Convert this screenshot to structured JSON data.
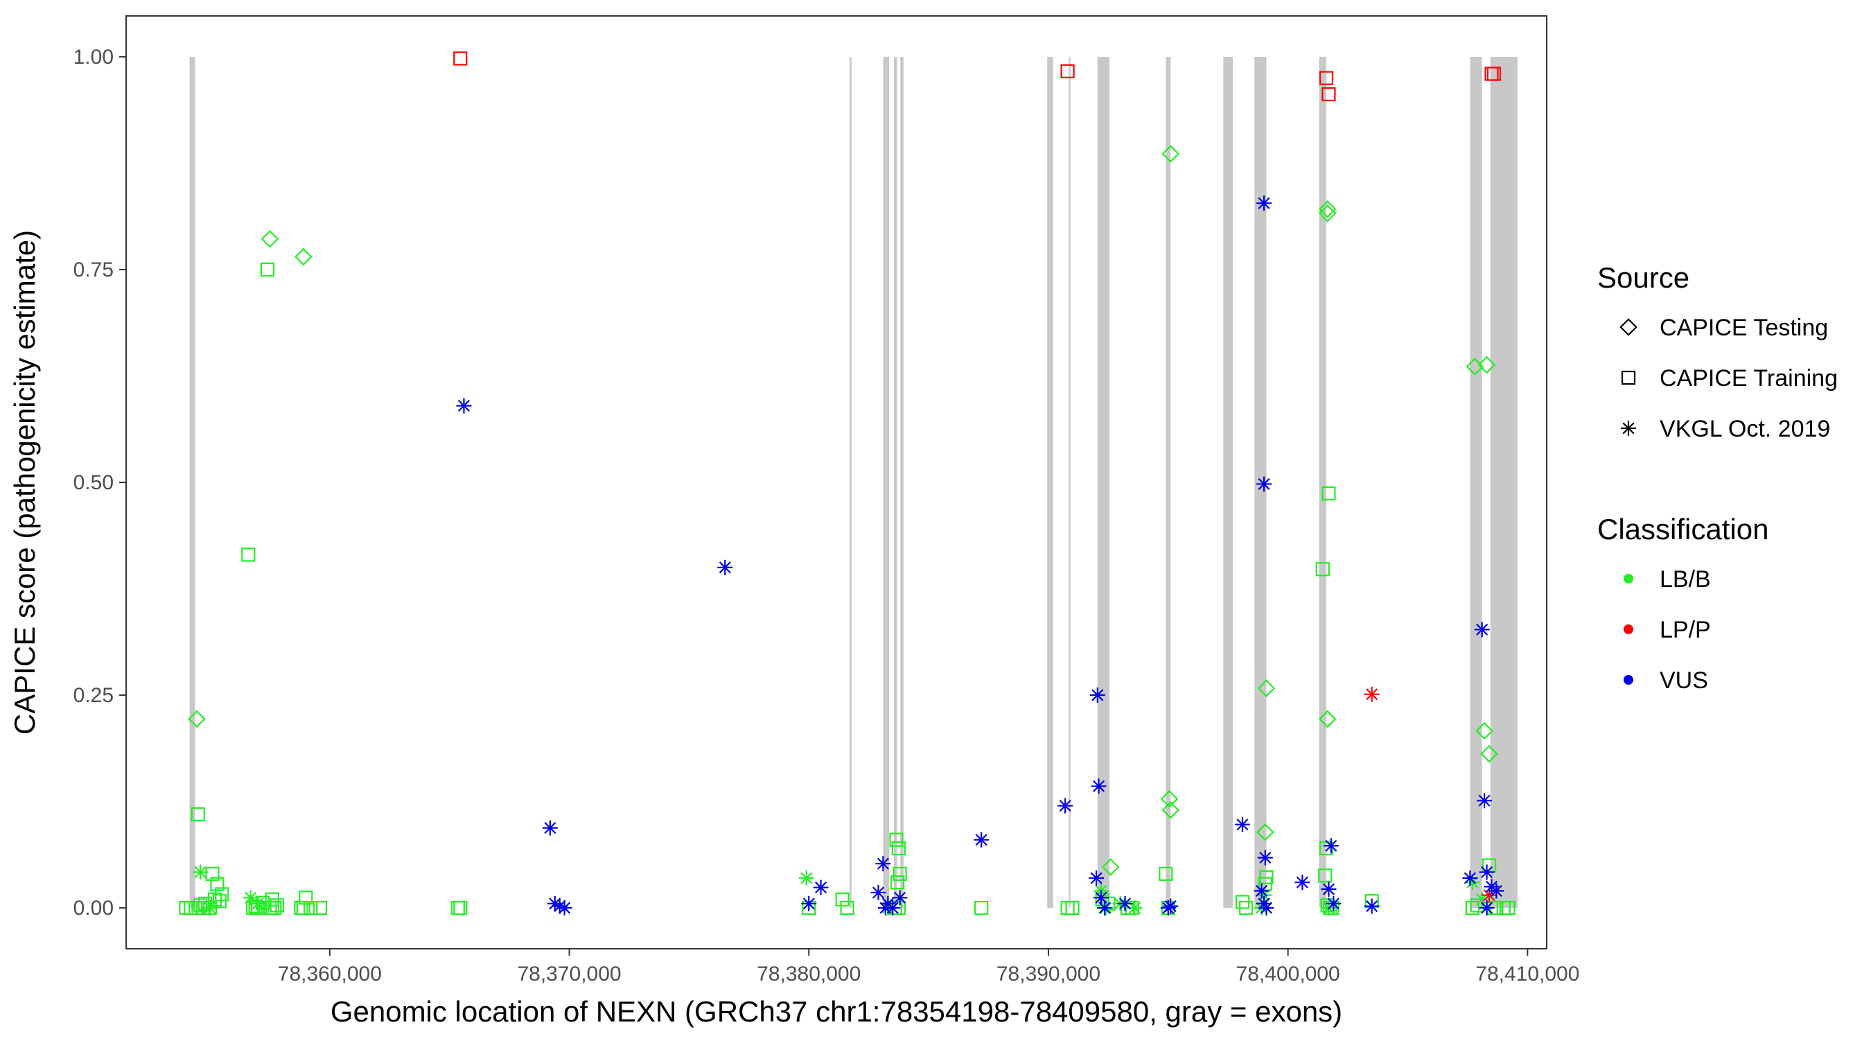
{
  "chart_data": {
    "type": "scatter",
    "xlabel": "Genomic location of NEXN (GRCh37 chr1:78354198-78409580, gray = exons)",
    "ylabel": "CAPICE score (pathogenicity estimate)",
    "xlim": [
      78351500,
      78410800
    ],
    "ylim": [
      -0.048,
      1.048
    ],
    "x_ticks": [
      78360000,
      78370000,
      78380000,
      78390000,
      78400000,
      78410000
    ],
    "x_tick_labels": [
      "78,360,000",
      "78,370,000",
      "78,380,000",
      "78,390,000",
      "78,400,000",
      "78,410,000"
    ],
    "y_ticks": [
      0,
      0.25,
      0.5,
      0.75,
      1.0
    ],
    "y_tick_labels": [
      "0.00",
      "0.25",
      "0.50",
      "0.75",
      "1.00"
    ],
    "grid": false,
    "exon_color": "#c8c8c8",
    "exons": [
      [
        78354150,
        78354380
      ],
      [
        78381700,
        78381780
      ],
      [
        78383100,
        78383350
      ],
      [
        78383550,
        78383680
      ],
      [
        78383820,
        78383950
      ],
      [
        78389950,
        78390200
      ],
      [
        78390850,
        78390920
      ],
      [
        78392050,
        78392550
      ],
      [
        78394900,
        78395100
      ],
      [
        78397300,
        78397700
      ],
      [
        78398600,
        78399100
      ],
      [
        78401300,
        78401600
      ],
      [
        78407600,
        78408100
      ],
      [
        78408450,
        78409580
      ]
    ],
    "legend": {
      "position": "right",
      "source_title": "Source",
      "classification_title": "Classification",
      "source_entries": [
        {
          "label": "CAPICE Testing",
          "shape": "diamond"
        },
        {
          "label": "CAPICE Training",
          "shape": "square"
        },
        {
          "label": "VKGL Oct. 2019",
          "shape": "asterisk"
        }
      ],
      "classification_entries": [
        {
          "label": "LB/B",
          "color": "#22ee22"
        },
        {
          "label": "LP/P",
          "color": "#ff0000"
        },
        {
          "label": "VUS",
          "color": "#0000ee"
        }
      ]
    },
    "series": [
      {
        "name": "CAPICE Testing / LB/B",
        "shape": "diamond",
        "color": "#22ee22",
        "x": [
          78354450,
          78357500,
          78358900,
          78395100,
          78395050,
          78395100,
          78399100,
          78399050,
          78392600,
          78401650,
          78401650,
          78401650,
          78407800,
          78408300,
          78408200,
          78408400
        ],
        "y": [
          0.222,
          0.786,
          0.765,
          0.886,
          0.128,
          0.115,
          0.258,
          0.089,
          0.048,
          0.821,
          0.816,
          0.222,
          0.636,
          0.638,
          0.208,
          0.181
        ]
      },
      {
        "name": "CAPICE Training / LB/B",
        "shape": "square",
        "color": "#22ee22",
        "x": [
          78354000,
          78354200,
          78354400,
          78354600,
          78354800,
          78355000,
          78355200,
          78355400,
          78354500,
          78355100,
          78355300,
          78355500,
          78355000,
          78354700,
          78356600,
          78356800,
          78357000,
          78357200,
          78357400,
          78357600,
          78357800,
          78357500,
          78357700,
          78356900,
          78357600,
          78358800,
          78359000,
          78359200,
          78359600,
          78358900,
          78365350,
          78365450,
          78380000,
          78381400,
          78381600,
          78383650,
          78383750,
          78383800,
          78383700,
          78383600,
          78383750,
          78387200,
          78390800,
          78391000,
          78392250,
          78392500,
          78393300,
          78393500,
          78394900,
          78395000,
          78398100,
          78398250,
          78399100,
          78399050,
          78401450,
          78401550,
          78401600,
          78401700,
          78401750,
          78401650,
          78401850,
          78403500,
          78407700,
          78407900,
          78408400,
          78408700,
          78409000,
          78409200,
          78408600
        ],
        "y": [
          0.0,
          0.0,
          0.0,
          0.003,
          0.005,
          0.0,
          0.01,
          0.008,
          0.11,
          0.04,
          0.028,
          0.016,
          0.0,
          0.0,
          0.415,
          0.0,
          0.0,
          0.006,
          0.75,
          0.01,
          0.003,
          0.0,
          0.0,
          0.002,
          0.0,
          0.0,
          0.012,
          0.0,
          0.0,
          0.0,
          0.0,
          0.0,
          0.0,
          0.01,
          0.0,
          0.08,
          0.07,
          0.04,
          0.03,
          0.0,
          0.0,
          0.0,
          0.0,
          0.0,
          0.01,
          0.005,
          0.0,
          0.0,
          0.04,
          0.0,
          0.007,
          0.0,
          0.036,
          0.028,
          0.398,
          0.038,
          0.07,
          0.487,
          0.0,
          0.003,
          0.0,
          0.008,
          0.0,
          0.003,
          0.05,
          0.0,
          0.0,
          0.0,
          0.0
        ]
      },
      {
        "name": "CAPICE Training / LP/P",
        "shape": "square",
        "color": "#ff0000",
        "x": [
          78365450,
          78390800,
          78401600,
          78401700,
          78408500,
          78408600
        ],
        "y": [
          0.998,
          0.983,
          0.975,
          0.956,
          0.98,
          0.98
        ]
      },
      {
        "name": "VKGL Oct. 2019 / LB/B",
        "shape": "asterisk",
        "color": "#22ee22",
        "x": [
          78354600,
          78356700,
          78357000,
          78355000,
          78379900,
          78383300,
          78392200,
          78393000,
          78393600,
          78398900,
          78407700,
          78408100,
          78399000,
          78401700,
          78392400
        ],
        "y": [
          0.042,
          0.012,
          0.005,
          0.0,
          0.035,
          0.0,
          0.02,
          0.005,
          0.0,
          0.0,
          0.03,
          0.01,
          0.015,
          0.0,
          0.0
        ]
      },
      {
        "name": "VKGL Oct. 2019 / LP/P",
        "shape": "asterisk",
        "color": "#ff0000",
        "x": [
          78403500,
          78408400
        ],
        "y": [
          0.251,
          0.015
        ]
      },
      {
        "name": "VKGL Oct. 2019 / VUS",
        "shape": "asterisk",
        "color": "#0000ee",
        "x": [
          78365600,
          78376500,
          78369200,
          78369400,
          78369800,
          78369600,
          78380000,
          78380500,
          78383100,
          78382900,
          78383300,
          78383500,
          78383800,
          78383200,
          78387200,
          78390700,
          78392050,
          78392100,
          78392000,
          78392200,
          78392350,
          78393200,
          78395000,
          78395100,
          78398100,
          78399000,
          78399000,
          78399050,
          78398900,
          78399100,
          78399000,
          78400600,
          78401800,
          78401700,
          78401900,
          78403500,
          78407600,
          78408100,
          78408200,
          78408300,
          78408500,
          78408700,
          78408300
        ],
        "y": [
          0.59,
          0.4,
          0.094,
          0.005,
          0.0,
          0.002,
          0.005,
          0.024,
          0.052,
          0.018,
          0.005,
          0.0,
          0.012,
          0.0,
          0.08,
          0.12,
          0.25,
          0.143,
          0.035,
          0.012,
          0.0,
          0.005,
          0.0,
          0.002,
          0.098,
          0.828,
          0.498,
          0.059,
          0.02,
          0.0,
          0.005,
          0.03,
          0.073,
          0.022,
          0.005,
          0.002,
          0.035,
          0.327,
          0.126,
          0.042,
          0.025,
          0.02,
          0.0
        ]
      }
    ]
  }
}
